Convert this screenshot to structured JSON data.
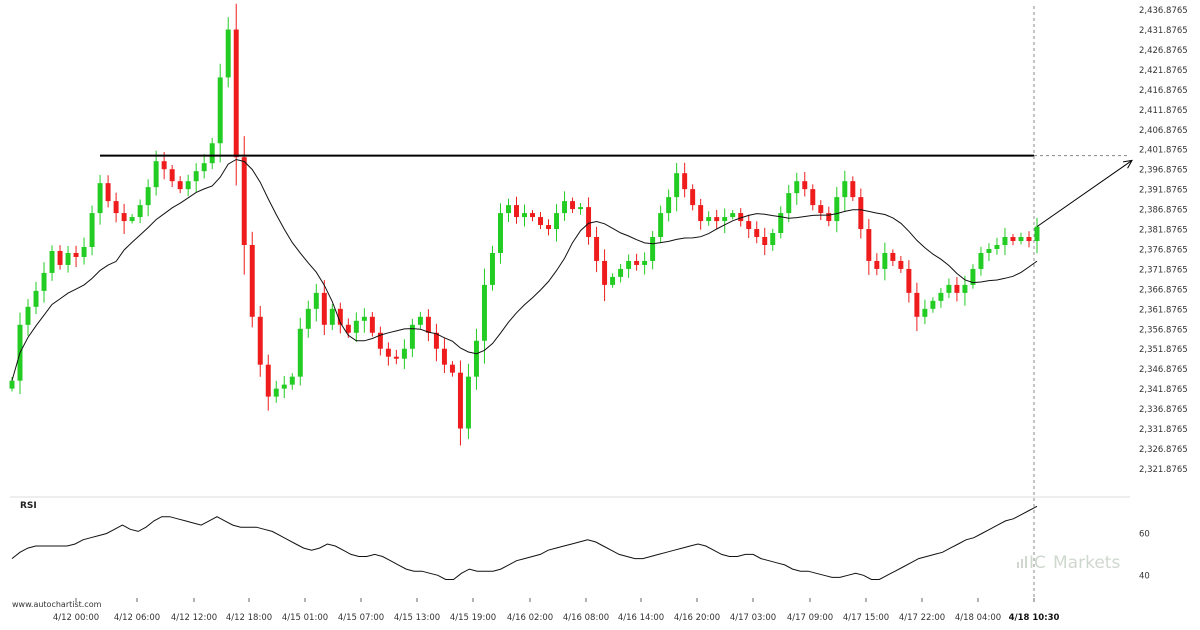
{
  "credit": "www.autochartist.com",
  "watermark": {
    "brand": "Markets",
    "prefix": "IC"
  },
  "chart_data": {
    "type": "candlestick",
    "y_ticks": [
      "2,436.8765",
      "2,431.8765",
      "2,426.8765",
      "2,421.8765",
      "2,416.8765",
      "2,411.8765",
      "2,406.8765",
      "2,401.8765",
      "2,396.8765",
      "2,391.8765",
      "2,386.8765",
      "2,381.8765",
      "2,376.8765",
      "2,371.8765",
      "2,366.8765",
      "2,361.8765",
      "2,356.8765",
      "2,351.8765",
      "2,346.8765",
      "2,341.8765",
      "2,336.8765",
      "2,331.8765",
      "2,326.8765",
      "2,321.8765"
    ],
    "y_tick_values": [
      2436.8765,
      2431.8765,
      2426.8765,
      2421.8765,
      2416.8765,
      2411.8765,
      2406.8765,
      2401.8765,
      2396.8765,
      2391.8765,
      2386.8765,
      2381.8765,
      2376.8765,
      2371.8765,
      2366.8765,
      2361.8765,
      2356.8765,
      2351.8765,
      2346.8765,
      2341.8765,
      2336.8765,
      2331.8765,
      2326.8765,
      2321.8765
    ],
    "ylim": [
      2319.6,
      2437.4
    ],
    "x_ticks": [
      "4/12 00:00",
      "4/12 06:00",
      "4/12 12:00",
      "4/12 18:00",
      "4/15 01:00",
      "4/15 07:00",
      "4/15 13:00",
      "4/15 19:00",
      "4/16 02:00",
      "4/16 08:00",
      "4/16 14:00",
      "4/16 20:00",
      "4/17 03:00",
      "4/17 09:00",
      "4/17 15:00",
      "4/17 22:00",
      "4/18 04:00",
      "4/18 10:30"
    ],
    "resistance_level": 2400.4,
    "projection": {
      "from": 2382.6,
      "to": 2399.2
    },
    "up_color": "#22cc22",
    "down_color": "#ee1c1c",
    "close": [
      2344.0,
      2358.0,
      2362.5,
      2366.5,
      2371.0,
      2376.5,
      2373.0,
      2376.0,
      2375.0,
      2377.5,
      2386.0,
      2393.5,
      2389.0,
      2386.0,
      2384.0,
      2385.0,
      2388.0,
      2392.5,
      2399.0,
      2397.0,
      2394.0,
      2392.0,
      2394.0,
      2396.5,
      2398.5,
      2403.5,
      2420.0,
      2432.0,
      2400.0,
      2378.0,
      2360.0,
      2348.0,
      2340.0,
      2342.0,
      2343.0,
      2345.0,
      2357.0,
      2362.0,
      2366.0,
      2358.0,
      2362.0,
      2358.0,
      2356.0,
      2359.0,
      2360.0,
      2356.0,
      2352.0,
      2350.0,
      2349.5,
      2352.0,
      2358.0,
      2360.0,
      2356.0,
      2352.0,
      2348.0,
      2346.0,
      2332.0,
      2345.0,
      2354.0,
      2368.0,
      2376.0,
      2386.0,
      2388.0,
      2385.0,
      2386.0,
      2385.0,
      2383.0,
      2382.0,
      2386.0,
      2389.0,
      2387.0,
      2387.5,
      2380.0,
      2374.0,
      2368.0,
      2370.0,
      2372.0,
      2374.0,
      2373.0,
      2374.0,
      2380.0,
      2386.0,
      2390.0,
      2396.0,
      2392.0,
      2388.0,
      2384.0,
      2385.0,
      2384.0,
      2385.0,
      2386.0,
      2384.0,
      2382.0,
      2380.0,
      2378.0,
      2381.0,
      2386.0,
      2391.0,
      2394.0,
      2392.0,
      2388.0,
      2386.0,
      2384.0,
      2390.0,
      2394.0,
      2390.0,
      2382.0,
      2374.0,
      2372.0,
      2376.0,
      2374.0,
      2372.0,
      2366.0,
      2360.0,
      2362.0,
      2364.0,
      2366.0,
      2368.0,
      2366.0,
      2368.0,
      2372.0,
      2376.0,
      2377.0,
      2378.0,
      2380.0,
      2379.0,
      2380.0,
      2379.0,
      2382.6
    ]
  },
  "rsi": {
    "label": "RSI",
    "y_ticks": [
      "60",
      "40"
    ],
    "y_tick_values": [
      60,
      40
    ],
    "ylim": [
      33,
      76
    ],
    "values": [
      48,
      51,
      53,
      54,
      54,
      54,
      54,
      54,
      55,
      57,
      58,
      59,
      60,
      62,
      64,
      62,
      61,
      63,
      66,
      68,
      68,
      67,
      66,
      65,
      64,
      66,
      68,
      66,
      64,
      63,
      63,
      63,
      62,
      61,
      59,
      57,
      55,
      53,
      52,
      53,
      55,
      54,
      52,
      50,
      49,
      49,
      50,
      49,
      47,
      45,
      43,
      42,
      42,
      41,
      40,
      38,
      38,
      41,
      43,
      42,
      42,
      42,
      43,
      45,
      47,
      48,
      49,
      50,
      52,
      53,
      54,
      55,
      56,
      57,
      56,
      54,
      52,
      50,
      49,
      48,
      48,
      49,
      50,
      51,
      52,
      53,
      54,
      55,
      54,
      52,
      50,
      49,
      49,
      50,
      50,
      48,
      47,
      46,
      45,
      43,
      42,
      42,
      41,
      40,
      39,
      39,
      40,
      41,
      40,
      38,
      38,
      40,
      42,
      44,
      46,
      48,
      49,
      50,
      51,
      53,
      55,
      57,
      58,
      60,
      62,
      64,
      66,
      67,
      69,
      71,
      73
    ]
  }
}
